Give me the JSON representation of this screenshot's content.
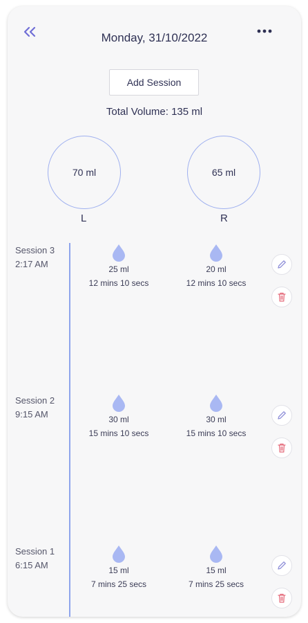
{
  "header": {
    "date": "Monday, 31/10/2022",
    "back_icon": "double-chevron-left-icon",
    "more_icon": "more-dots-icon"
  },
  "add_session_label": "Add Session",
  "total_volume": "Total Volume: 135 ml",
  "sides": {
    "left": {
      "volume": "70 ml",
      "label": "L"
    },
    "right": {
      "volume": "65 ml",
      "label": "R"
    }
  },
  "sessions": [
    {
      "name": "Session 3",
      "time": "2:17 AM",
      "left": {
        "volume": "25 ml",
        "duration": "12 mins 10 secs"
      },
      "right": {
        "volume": "20 ml",
        "duration": "12 mins 10 secs"
      }
    },
    {
      "name": "Session 2",
      "time": "9:15 AM",
      "left": {
        "volume": "30 ml",
        "duration": "15 mins 10 secs"
      },
      "right": {
        "volume": "30 ml",
        "duration": "15 mins 10 secs"
      }
    },
    {
      "name": "Session 1",
      "time": "6:15 AM",
      "left": {
        "volume": "15 ml",
        "duration": "7 mins 25 secs"
      },
      "right": {
        "volume": "15 ml",
        "duration": "7 mins 25 secs"
      }
    }
  ],
  "colors": {
    "accent": "#8ea4ec",
    "drop": "#a9b8f3",
    "edit": "#8f8fd8",
    "delete": "#e46a7a"
  }
}
